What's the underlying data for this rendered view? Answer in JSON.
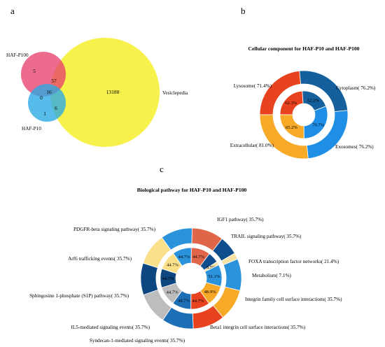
{
  "panel_letters": {
    "a": "a",
    "b": "b",
    "c": "c"
  },
  "chart_data": [
    {
      "type": "venn",
      "sets": [
        "HAF-P100",
        "HAF-P10",
        "Vesiclepedia"
      ],
      "regions": {
        "HAF-P100_only": "5",
        "HAF-P100_Vesiclepedia": "57",
        "HAF-P100_HAF-P10": "0",
        "all_three": "16",
        "HAF-P10_only": "1",
        "HAF-P10_Vesiclepedia": "6",
        "Vesiclepedia_only": "13188"
      },
      "colors": {
        "HAF-P100": "#e8416c",
        "HAF-P10": "#29a9e6",
        "Vesiclepedia": "#f4ef2b"
      }
    },
    {
      "type": "donut",
      "title": "Cellular component for HAF-P10 and HAF-P100",
      "outer": [
        {
          "label": "Lysosome( 71.4%)",
          "value": 71.4,
          "color": "#e8431f"
        },
        {
          "label": "Cytoplasm( 76.2%)",
          "value": 76.2,
          "color": "#155f9c"
        },
        {
          "label": "Exosomes( 76.2%)",
          "value": 76.2,
          "color": "#1f8fe6"
        },
        {
          "label": "Extracellular( 81.0%)",
          "value": 81.0,
          "color": "#f7a928"
        }
      ],
      "inner": [
        {
          "label": "62.3%",
          "value": 62.3,
          "color": "#e8431f"
        },
        {
          "label": "52.2%",
          "value": 52.2,
          "color": "#155f9c"
        },
        {
          "label": "79.7%",
          "value": 79.7,
          "color": "#1f8fe6"
        },
        {
          "label": "65.2%",
          "value": 65.2,
          "color": "#f7a928"
        }
      ]
    },
    {
      "type": "donut",
      "title": "Biological pathway for HAF-P10 and HAF-P100",
      "outer": [
        {
          "label": "IGF1 pathway( 35.7%)",
          "value": 35.7,
          "color": "#2a93dc"
        },
        {
          "label": "TRAIL signaling pathway( 35.7%)",
          "value": 35.7,
          "color": "#e0664a"
        },
        {
          "label": "FOXA transcription factor networks( 21.4%)",
          "value": 21.4,
          "color": "#0f4e8c"
        },
        {
          "label": "Metabolism( 7.1%)",
          "value": 7.1,
          "color": "#f7e2a4"
        },
        {
          "label": "Integrin family cell surface interactions( 35.7%)",
          "value": 35.7,
          "color": "#2a93dc"
        },
        {
          "label": "Beta1 integrin cell surface interactions( 35.7%)",
          "value": 35.7,
          "color": "#f7a928"
        },
        {
          "label": "Syndecan-1-mediated signaling events( 35.7%)",
          "value": 35.7,
          "color": "#e8431f"
        },
        {
          "label": "IL5-mediated signaling events( 35.7%)",
          "value": 35.7,
          "color": "#1d6fb5"
        },
        {
          "label": "Sphingosine 1-phosphate (S1P) pathway( 35.7%)",
          "value": 35.7,
          "color": "#bdbdbd"
        },
        {
          "label": "Arf6 trafficking events( 35.7%)",
          "value": 35.7,
          "color": "#0d4680"
        },
        {
          "label": "PDGFR-beta signaling pathway( 35.7%)",
          "value": 35.7,
          "color": "#fbe08a"
        }
      ],
      "inner": [
        {
          "label": "44.7%",
          "value": 44.7,
          "color": "#2a93dc"
        },
        {
          "label": "44.7%",
          "value": 44.7,
          "color": "#e0664a"
        },
        {
          "label": "",
          "value": 25.5,
          "color": "#0f4e8c"
        },
        {
          "label": "8.5%",
          "value": 8.5,
          "color": "#f7e2a4"
        },
        {
          "label": "51.1%",
          "value": 51.1,
          "color": "#2a93dc"
        },
        {
          "label": "48.9%",
          "value": 48.9,
          "color": "#f7a928"
        },
        {
          "label": "44.7%",
          "value": 44.7,
          "color": "#e8431f"
        },
        {
          "label": "44.7%",
          "value": 44.7,
          "color": "#1d6fb5"
        },
        {
          "label": "44.7%",
          "value": 44.7,
          "color": "#bdbdbd"
        },
        {
          "label": "44.7%",
          "value": 44.7,
          "color": "#0d4680"
        },
        {
          "label": "44.7%",
          "value": 44.7,
          "color": "#fbe08a"
        }
      ]
    }
  ]
}
